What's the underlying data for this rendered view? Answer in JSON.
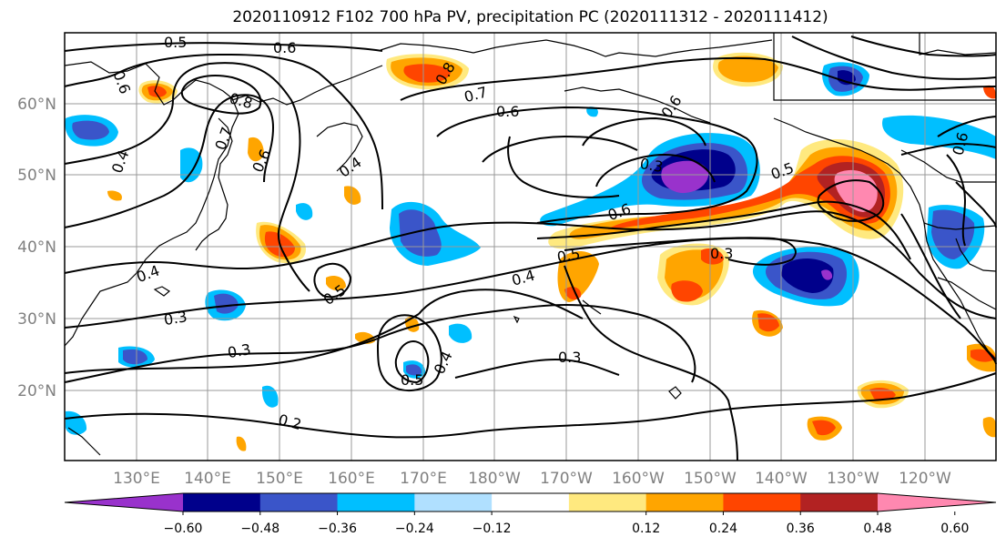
{
  "title": "2020110912 F102 700 hPa PV, precipitation PC (2020111312 - 2020111412)",
  "map": {
    "lat_labels": [
      "60°N",
      "50°N",
      "40°N",
      "30°N",
      "20°N"
    ],
    "lon_labels": [
      "130°E",
      "140°E",
      "150°E",
      "160°E",
      "170°E",
      "180°W",
      "170°W",
      "160°W",
      "150°W",
      "140°W",
      "130°W",
      "120°W"
    ],
    "contour_labels": [
      "0.5",
      "0.6",
      "0.6",
      "0.8",
      "0.8",
      "0.7",
      "0.6",
      "0.4",
      "0.4",
      "0.6",
      "0.7",
      "0.3",
      "0.5",
      "0.6",
      "0.4",
      "0.5",
      "0.3",
      "0.4",
      "0.5",
      "0.3",
      "0.3",
      "0.3",
      "0.5",
      "0.4",
      "0.2",
      "0.6",
      "0.6"
    ]
  },
  "colorbar": {
    "tick_labels": [
      "−0.60",
      "−0.48",
      "−0.36",
      "−0.24",
      "−0.12",
      "0.12",
      "0.24",
      "0.36",
      "0.48",
      "0.60"
    ],
    "colors": [
      "#9932CC",
      "#00008B",
      "#3A55C9",
      "#00BFFF",
      "#B0E0FF",
      "#FFFFFF",
      "#FFE97F",
      "#FFA500",
      "#FF4500",
      "#B22222",
      "#FF88B0"
    ]
  }
}
